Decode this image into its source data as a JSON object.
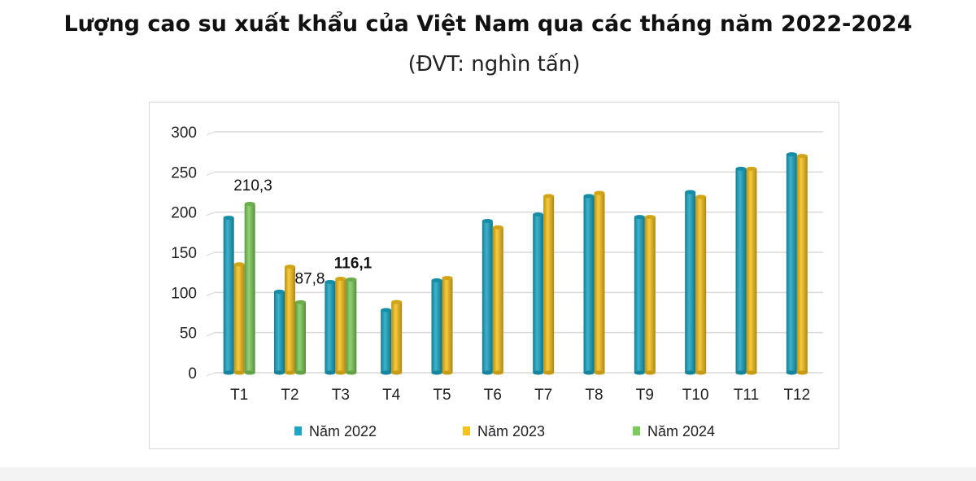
{
  "title": "Lượng cao su xuất khẩu của Việt Nam qua các tháng năm 2022-2024",
  "subtitle": "(ĐVT: nghìn tấn)",
  "chart_data": {
    "type": "bar",
    "title": "Lượng cao su xuất khẩu của Việt Nam qua các tháng năm 2022-2024",
    "subtitle": "(ĐVT: nghìn tấn)",
    "xlabel": "",
    "ylabel": "",
    "ylim": [
      0,
      300
    ],
    "yticks": [
      0,
      50,
      100,
      150,
      200,
      250,
      300
    ],
    "grid": true,
    "legend": "bottom",
    "categories": [
      "T1",
      "T2",
      "T3",
      "T4",
      "T5",
      "T6",
      "T7",
      "T8",
      "T9",
      "T10",
      "T11",
      "T12"
    ],
    "series": [
      {
        "name": "Năm 2022",
        "color": "#1aa6c4",
        "values": [
          193,
          101,
          113,
          78,
          115,
          189,
          197,
          220,
          194,
          225,
          254,
          272
        ]
      },
      {
        "name": "Năm 2023",
        "color": "#f7c21b",
        "values": [
          135,
          132,
          117,
          88,
          118,
          181,
          220,
          224,
          194,
          219,
          254,
          270
        ]
      },
      {
        "name": "Năm 2024",
        "color": "#7dcb5a",
        "values": [
          210.3,
          87.8,
          116.1,
          null,
          null,
          null,
          null,
          null,
          null,
          null,
          null,
          null
        ]
      }
    ],
    "data_labels": [
      {
        "series": 2,
        "category": "T1",
        "text": "210,3",
        "bold": false
      },
      {
        "series": 2,
        "category": "T2",
        "text": "87,8",
        "bold": false
      },
      {
        "series": 2,
        "category": "T3",
        "text": "116,1",
        "bold": true
      }
    ]
  }
}
